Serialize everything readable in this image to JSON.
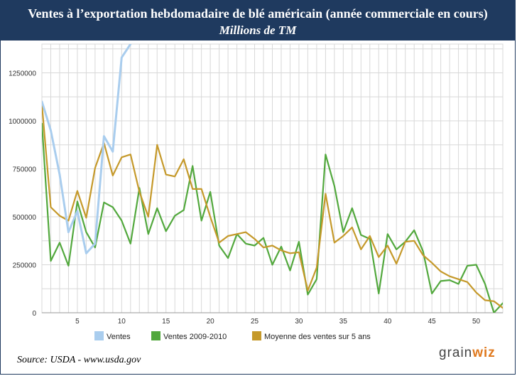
{
  "header": {
    "title": "Ventes à l’exportation hebdomadaire de blé américain (année commerciale en cours)",
    "subtitle": "Millions de TM"
  },
  "footer": {
    "source": "Source:  USDA - www.usda.gov",
    "logo_left": "grain",
    "logo_right": "wiz"
  },
  "colors": {
    "ventes": "#a9cdee",
    "ventes_2009_2010": "#52a83d",
    "moyenne_5_ans": "#c5992a",
    "grid": "#d8d8d8"
  },
  "chart_data": {
    "type": "line",
    "title": "",
    "xlabel": "",
    "ylabel": "",
    "xlim": [
      1,
      53
    ],
    "ylim": [
      0,
      1400000
    ],
    "x_ticks": [
      5,
      10,
      15,
      20,
      25,
      30,
      35,
      40,
      45,
      50
    ],
    "y_ticks": [
      0,
      250000,
      500000,
      750000,
      1000000,
      1250000
    ],
    "y_tick_labels": [
      "0",
      "250000",
      "500000",
      "750000",
      "1000000",
      "1250000"
    ],
    "grid": true,
    "legend_position": "bottom",
    "series": [
      {
        "name": "Ventes",
        "color_key": "ventes",
        "x": [
          1,
          2,
          3,
          4,
          5,
          6,
          7,
          8,
          9,
          10,
          11
        ],
        "values": [
          1100000,
          950000,
          720000,
          420000,
          530000,
          310000,
          360000,
          920000,
          840000,
          1330000,
          1400000
        ]
      },
      {
        "name": "Ventes 2009-2010",
        "color_key": "ventes_2009_2010",
        "x": [
          1,
          2,
          3,
          4,
          5,
          6,
          7,
          8,
          9,
          10,
          11,
          12,
          13,
          14,
          15,
          16,
          17,
          18,
          19,
          20,
          21,
          22,
          23,
          24,
          25,
          26,
          27,
          28,
          29,
          30,
          31,
          32,
          33,
          34,
          35,
          36,
          37,
          38,
          39,
          40,
          41,
          42,
          43,
          44,
          45,
          46,
          47,
          48,
          49,
          50,
          51,
          52,
          53
        ],
        "values": [
          985000,
          270000,
          365000,
          245000,
          580000,
          420000,
          340000,
          575000,
          550000,
          480000,
          360000,
          650000,
          410000,
          545000,
          425000,
          505000,
          535000,
          765000,
          480000,
          630000,
          350000,
          285000,
          410000,
          360000,
          350000,
          390000,
          250000,
          345000,
          220000,
          370000,
          95000,
          175000,
          825000,
          660000,
          420000,
          545000,
          405000,
          385000,
          100000,
          410000,
          330000,
          370000,
          430000,
          320000,
          100000,
          165000,
          170000,
          150000,
          245000,
          250000,
          150000,
          0,
          50000
        ]
      },
      {
        "name": "Moyenne des ventes sur 5 ans",
        "color_key": "moyenne_5_ans",
        "x": [
          1,
          2,
          3,
          4,
          5,
          6,
          7,
          8,
          9,
          10,
          11,
          12,
          13,
          14,
          15,
          16,
          17,
          18,
          19,
          20,
          21,
          22,
          23,
          24,
          25,
          26,
          27,
          28,
          29,
          30,
          31,
          32,
          33,
          34,
          35,
          36,
          37,
          38,
          39,
          40,
          41,
          42,
          43,
          44,
          45,
          46,
          47,
          48,
          49,
          50,
          51,
          52,
          53
        ],
        "values": [
          1085000,
          550000,
          505000,
          480000,
          635000,
          495000,
          755000,
          885000,
          715000,
          810000,
          825000,
          630000,
          500000,
          875000,
          720000,
          710000,
          800000,
          645000,
          645000,
          500000,
          365000,
          400000,
          410000,
          420000,
          385000,
          340000,
          350000,
          325000,
          310000,
          315000,
          115000,
          235000,
          620000,
          365000,
          400000,
          445000,
          330000,
          400000,
          290000,
          350000,
          255000,
          370000,
          375000,
          300000,
          260000,
          215000,
          190000,
          175000,
          160000,
          105000,
          65000,
          60000,
          25000
        ]
      }
    ]
  }
}
